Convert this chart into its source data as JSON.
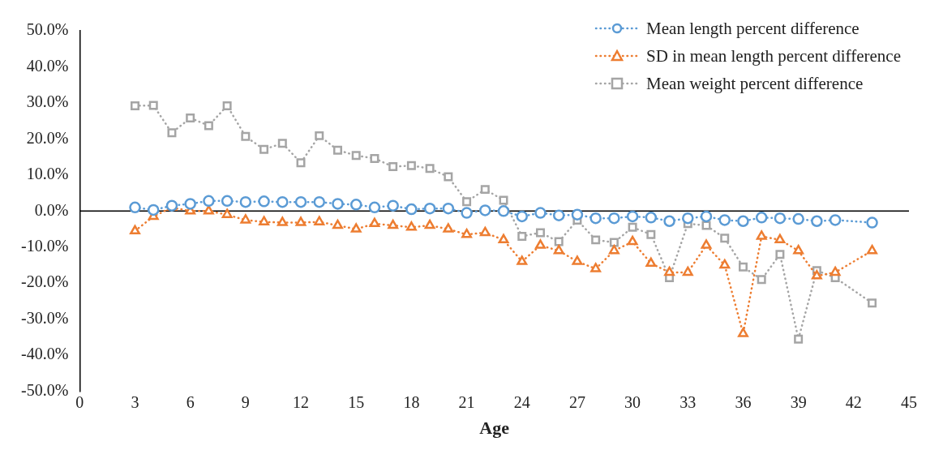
{
  "chart_data": {
    "type": "line",
    "xlabel": "Age",
    "line_style": "dotted",
    "grid": false,
    "legend": "top right",
    "ref_lines": [
      {
        "axis": "y",
        "value": 0,
        "color": "#000000",
        "line_style": "solid"
      }
    ],
    "x": [
      3,
      4,
      5,
      6,
      7,
      8,
      9,
      10,
      11,
      12,
      13,
      14,
      15,
      16,
      17,
      18,
      19,
      20,
      21,
      22,
      23,
      24,
      25,
      26,
      27,
      28,
      29,
      30,
      31,
      32,
      33,
      34,
      35,
      36,
      37,
      38,
      39,
      40,
      41,
      42,
      43
    ],
    "xlim": [
      0,
      45
    ],
    "xticks": [
      0,
      3,
      6,
      9,
      12,
      15,
      18,
      21,
      24,
      27,
      30,
      33,
      36,
      39,
      42,
      45
    ],
    "ylim": [
      -50,
      50
    ],
    "yticks": [
      {
        "value": -50,
        "label": "-50.0%"
      },
      {
        "value": -40,
        "label": "-40.0%"
      },
      {
        "value": -30,
        "label": "-30.0%"
      },
      {
        "value": -20,
        "label": "-20.0%"
      },
      {
        "value": -10,
        "label": "-10.0%"
      },
      {
        "value": 0,
        "label": "0.0%"
      },
      {
        "value": 10,
        "label": "10.0%"
      },
      {
        "value": 20,
        "label": "20.0%"
      },
      {
        "value": 30,
        "label": "30.0%"
      },
      {
        "value": 40,
        "label": "40.0%"
      },
      {
        "value": 50,
        "label": "50.0%"
      }
    ],
    "series": [
      {
        "name": "Mean length percent difference",
        "color": "#5b9bd5",
        "marker": "circle",
        "values": [
          1.0,
          0.3,
          1.5,
          2.0,
          2.8,
          2.8,
          2.5,
          2.7,
          2.5,
          2.5,
          2.5,
          2.0,
          1.8,
          1.0,
          1.5,
          0.5,
          0.7,
          0.7,
          -0.5,
          0.2,
          0.0,
          -1.5,
          -0.5,
          -1.2,
          -1.0,
          -2.0,
          -2.0,
          -1.5,
          -1.8,
          -2.8,
          -2.0,
          -1.5,
          -2.5,
          -2.8,
          -1.8,
          -2.0,
          -2.2,
          -2.8,
          -2.5,
          null,
          -3.2
        ]
      },
      {
        "name": "SD in mean length percent difference",
        "color": "#ed7d31",
        "marker": "triangle",
        "values": [
          -5.5,
          -1.5,
          1.0,
          0.0,
          0.0,
          -1.0,
          -2.5,
          -3.0,
          -3.2,
          -3.2,
          -3.0,
          -4.0,
          -5.0,
          -3.5,
          -4.0,
          -4.5,
          -4.0,
          -5.0,
          -6.5,
          -6.0,
          -8.0,
          -14.0,
          -9.5,
          -11.0,
          -14.0,
          -16.0,
          -11.0,
          -8.5,
          -14.5,
          -17.0,
          -17.0,
          -9.5,
          -15.0,
          -34.0,
          -7.0,
          -8.0,
          -11.0,
          -18.0,
          -17.0,
          null,
          -11.0
        ]
      },
      {
        "name": "Mean weight percent difference",
        "color": "#a5a5a5",
        "marker": "square",
        "values": [
          29.2,
          29.3,
          21.7,
          25.8,
          23.7,
          29.2,
          20.7,
          17.1,
          18.8,
          13.4,
          20.9,
          16.9,
          15.4,
          14.6,
          12.3,
          12.6,
          11.8,
          9.5,
          2.6,
          6.0,
          3.0,
          -7.0,
          -6.0,
          -8.5,
          -2.5,
          -8.0,
          -8.7,
          -4.5,
          -6.5,
          -18.5,
          -3.5,
          -4.0,
          -7.5,
          -15.5,
          -19.0,
          -12.0,
          -35.5,
          -16.5,
          -18.5,
          null,
          -25.5
        ]
      }
    ]
  }
}
